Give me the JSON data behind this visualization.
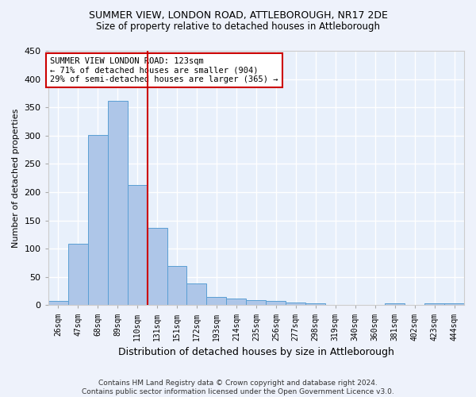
{
  "title_line1": "SUMMER VIEW, LONDON ROAD, ATTLEBOROUGH, NR17 2DE",
  "title_line2": "Size of property relative to detached houses in Attleborough",
  "xlabel": "Distribution of detached houses by size in Attleborough",
  "ylabel": "Number of detached properties",
  "footer": "Contains HM Land Registry data © Crown copyright and database right 2024.\nContains public sector information licensed under the Open Government Licence v3.0.",
  "categories": [
    "26sqm",
    "47sqm",
    "68sqm",
    "89sqm",
    "110sqm",
    "131sqm",
    "151sqm",
    "172sqm",
    "193sqm",
    "214sqm",
    "235sqm",
    "256sqm",
    "277sqm",
    "298sqm",
    "319sqm",
    "340sqm",
    "360sqm",
    "381sqm",
    "402sqm",
    "423sqm",
    "444sqm"
  ],
  "values": [
    8,
    108,
    301,
    362,
    212,
    137,
    70,
    39,
    14,
    12,
    9,
    7,
    5,
    3,
    0,
    0,
    0,
    4,
    0,
    4,
    4
  ],
  "bar_color": "#aec6e8",
  "bar_edge_color": "#5a9fd4",
  "background_color": "#e8f0fb",
  "grid_color": "#ffffff",
  "annotation_box_color": "#ffffff",
  "annotation_box_edge_color": "#cc0000",
  "red_line_x": 4.5,
  "annotation_title": "SUMMER VIEW LONDON ROAD: 123sqm",
  "annotation_line2": "← 71% of detached houses are smaller (904)",
  "annotation_line3": "29% of semi-detached houses are larger (365) →",
  "ylim": [
    0,
    450
  ],
  "yticks": [
    0,
    50,
    100,
    150,
    200,
    250,
    300,
    350,
    400,
    450
  ]
}
